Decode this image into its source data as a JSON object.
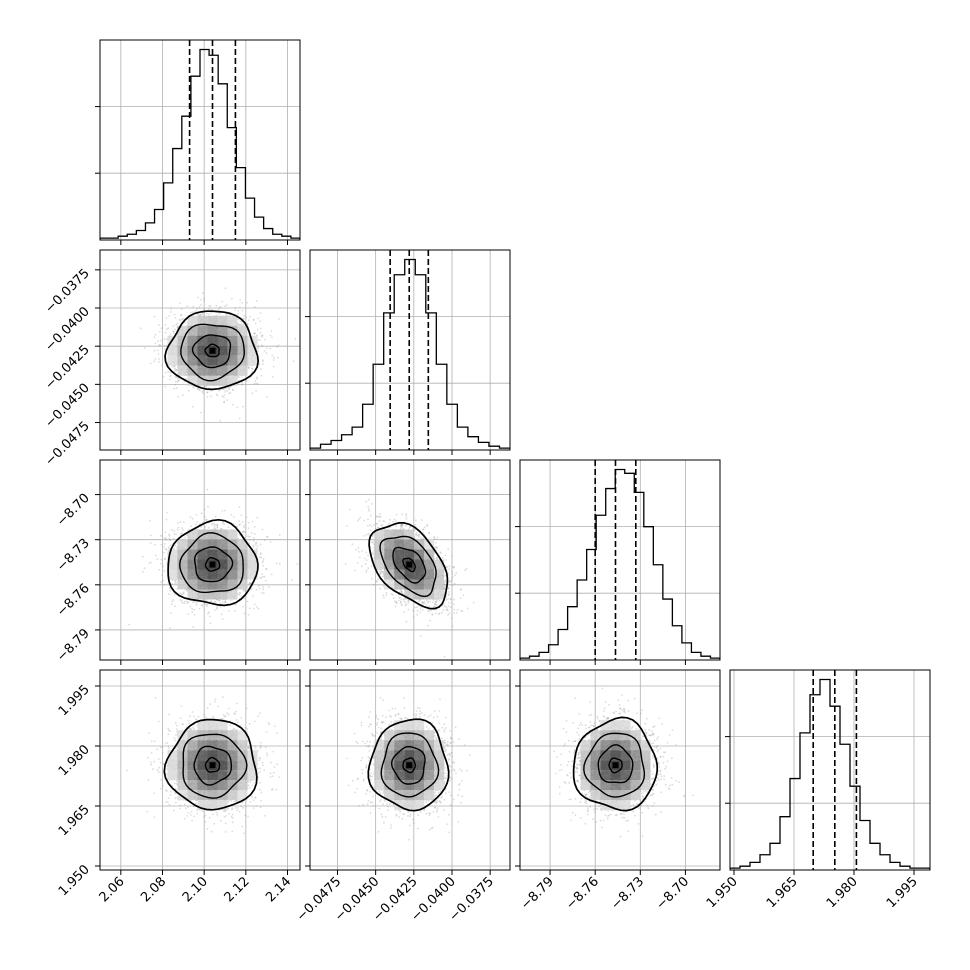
{
  "figure": {
    "type": "corner-plot",
    "parameters": [
      {
        "ticks": [
          2.06,
          2.08,
          2.1,
          2.12,
          2.14
        ],
        "tick_labels": [
          "2.06",
          "2.08",
          "2.10",
          "2.12",
          "2.14"
        ],
        "range": [
          2.05,
          2.146
        ],
        "center": 2.104,
        "sigma": 0.0105,
        "quantiles": [
          2.093,
          2.104,
          2.115
        ]
      },
      {
        "ticks": [
          -0.0475,
          -0.045,
          -0.0425,
          -0.04,
          -0.0375
        ],
        "tick_labels": [
          "−0.0475",
          "−0.0450",
          "−0.0425",
          "−0.0400",
          "−0.0375"
        ],
        "range": [
          -0.0493,
          -0.0362
        ],
        "center": -0.0428,
        "sigma": 0.00125,
        "quantiles": [
          -0.04405,
          -0.0428,
          -0.04155
        ]
      },
      {
        "ticks": [
          -8.79,
          -8.76,
          -8.73,
          -8.7
        ],
        "tick_labels": [
          "−8.79",
          "−8.76",
          "−8.73",
          "−8.70"
        ],
        "range": [
          -8.81,
          -8.677
        ],
        "center": -8.7465,
        "sigma": 0.0135,
        "quantiles": [
          -8.76,
          -8.7465,
          -8.733
        ]
      },
      {
        "ticks": [
          1.95,
          1.965,
          1.98,
          1.995
        ],
        "tick_labels": [
          "1.950",
          "1.965",
          "1.980",
          "1.995"
        ],
        "range": [
          1.949,
          1.999
        ],
        "center": 1.9752,
        "sigma": 0.0055,
        "quantiles": [
          1.9698,
          1.9752,
          1.9806
        ]
      }
    ]
  },
  "chart_data": [
    {
      "type": "histogram",
      "panel": [
        0,
        0
      ],
      "bins_x": [
        2.05,
        2.146
      ],
      "counts": [
        1,
        1,
        2,
        3,
        5,
        9,
        16,
        30,
        48,
        65,
        86,
        100,
        97,
        82,
        59,
        38,
        22,
        12,
        6,
        3,
        2,
        1
      ],
      "quantiles": [
        2.093,
        2.104,
        2.115
      ]
    },
    {
      "type": "scatter-density",
      "panel": [
        1,
        0
      ],
      "xlim": [
        2.05,
        2.146
      ],
      "ylim": [
        -0.0493,
        -0.0362
      ],
      "center": [
        2.104,
        -0.0428
      ],
      "correlation": 0.0
    },
    {
      "type": "histogram",
      "panel": [
        1,
        1
      ],
      "bins_x": [
        -0.0493,
        -0.0362
      ],
      "counts": [
        1,
        3,
        5,
        8,
        12,
        24,
        45,
        72,
        92,
        100,
        92,
        72,
        45,
        24,
        12,
        7,
        4,
        2,
        1
      ],
      "quantiles": [
        -0.04405,
        -0.0428,
        -0.04155
      ]
    },
    {
      "type": "scatter-density",
      "panel": [
        2,
        0
      ],
      "xlim": [
        2.05,
        2.146
      ],
      "ylim": [
        -8.81,
        -8.677
      ],
      "center": [
        2.104,
        -8.7465
      ],
      "correlation": 0.0
    },
    {
      "type": "scatter-density",
      "panel": [
        2,
        1
      ],
      "xlim": [
        -0.0493,
        -0.0362
      ],
      "ylim": [
        -8.81,
        -8.677
      ],
      "center": [
        -0.0428,
        -8.7465
      ],
      "correlation": -0.45
    },
    {
      "type": "histogram",
      "panel": [
        2,
        2
      ],
      "bins_x": [
        -8.81,
        -8.677
      ],
      "counts": [
        1,
        2,
        4,
        8,
        16,
        28,
        42,
        58,
        76,
        90,
        100,
        98,
        88,
        70,
        50,
        32,
        18,
        9,
        4,
        2,
        1
      ],
      "quantiles": [
        -8.76,
        -8.7465,
        -8.733
      ]
    },
    {
      "type": "scatter-density",
      "panel": [
        3,
        0
      ],
      "xlim": [
        2.05,
        2.146
      ],
      "ylim": [
        1.949,
        1.999
      ],
      "center": [
        2.104,
        1.9752
      ],
      "correlation": 0.0
    },
    {
      "type": "scatter-density",
      "panel": [
        3,
        1
      ],
      "xlim": [
        -0.0493,
        -0.0362
      ],
      "ylim": [
        1.949,
        1.999
      ],
      "center": [
        -0.0428,
        1.9752
      ],
      "correlation": 0.0
    },
    {
      "type": "scatter-density",
      "panel": [
        3,
        2
      ],
      "xlim": [
        -8.81,
        -8.677
      ],
      "ylim": [
        1.949,
        1.999
      ],
      "center": [
        -8.7465,
        1.9752
      ],
      "correlation": 0.0
    },
    {
      "type": "histogram",
      "panel": [
        3,
        3
      ],
      "bins_x": [
        1.949,
        1.999
      ],
      "counts": [
        1,
        2,
        4,
        8,
        14,
        28,
        48,
        72,
        92,
        100,
        86,
        66,
        44,
        26,
        14,
        8,
        4,
        2,
        1,
        1
      ],
      "quantiles": [
        1.9698,
        1.9752,
        1.9806
      ]
    }
  ],
  "style": {
    "line_color": "#000000",
    "grid_color": "#b0b0b0",
    "point_color": "#9a9a9a",
    "background": "#ffffff"
  }
}
